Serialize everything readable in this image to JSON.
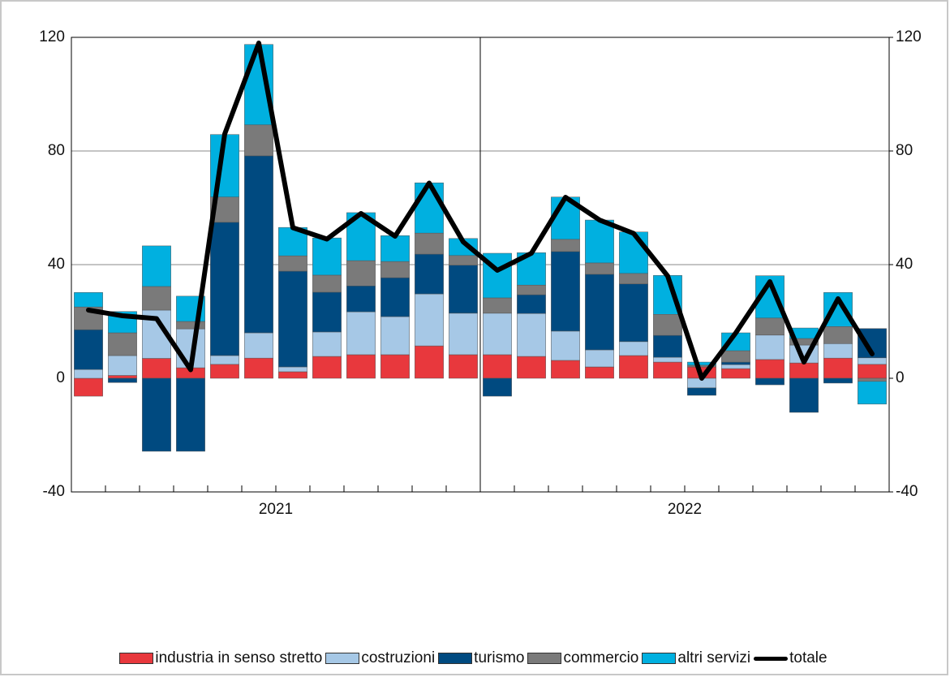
{
  "chart_data": {
    "type": "stacked-bar-line",
    "categories": [
      null,
      null,
      null,
      null,
      null,
      "2021",
      null,
      null,
      null,
      null,
      null,
      null,
      null,
      null,
      null,
      null,
      null,
      "2022",
      null,
      null,
      null,
      null,
      null,
      null
    ],
    "series": [
      {
        "name": "industria in senso stretto",
        "color": "#e8383d",
        "values": [
          -6.3,
          1,
          7,
          3.7,
          4.9,
          7.1,
          2.3,
          7.7,
          8.3,
          8.3,
          11.4,
          8.3,
          8.3,
          7.7,
          6.3,
          4,
          8,
          5.7,
          4,
          3.4,
          6.6,
          5.4,
          7.1,
          4.9
        ]
      },
      {
        "name": "costruzioni",
        "color": "#a6c8e6",
        "values": [
          3.1,
          7,
          17,
          13.7,
          3.1,
          8.9,
          1.7,
          8.6,
          15.1,
          13.4,
          18.3,
          14.6,
          14.6,
          15.1,
          10.3,
          6,
          4.9,
          1.7,
          -3.4,
          1.4,
          8.6,
          6.3,
          5.1,
          2.3
        ]
      },
      {
        "name": "turismo",
        "color": "#004a80",
        "values": [
          14,
          -1.5,
          -25.7,
          -25.7,
          46.9,
          62.3,
          33.7,
          14,
          9.1,
          13.7,
          14,
          16.9,
          -6.3,
          6.6,
          28,
          26.6,
          20.3,
          7.7,
          -2.6,
          0.9,
          -2.3,
          -12,
          -1.7,
          10.3
        ]
      },
      {
        "name": "commercio",
        "color": "#7a7a7a",
        "values": [
          8,
          8,
          8.3,
          2.6,
          8.9,
          10.9,
          5.4,
          6,
          8.9,
          5.7,
          7.4,
          3.4,
          5.4,
          3.4,
          4.3,
          4,
          3.7,
          7.4,
          0.6,
          4,
          6,
          2.3,
          6,
          -1.1
        ]
      },
      {
        "name": "altri servizi",
        "color": "#00b0e0",
        "values": [
          5.1,
          7.5,
          14.3,
          8.9,
          22,
          28.3,
          10,
          13.1,
          16.9,
          9.1,
          17.7,
          6,
          15.7,
          11.4,
          14.9,
          15.1,
          14.6,
          13.7,
          1.1,
          6.3,
          14.9,
          3.7,
          12,
          -8
        ]
      },
      {
        "name": "totale",
        "color": "#000000",
        "line": true,
        "values": [
          24,
          22,
          21,
          3,
          86,
          118,
          53,
          49,
          58,
          50,
          68.7,
          48,
          38,
          44,
          63.7,
          55.7,
          51,
          36,
          0,
          16,
          34,
          5.7,
          28,
          8.6
        ]
      }
    ],
    "ylim": [
      -40,
      120
    ],
    "yticks": [
      -40,
      0,
      40,
      80,
      120
    ],
    "y2lim": [
      -40,
      120
    ],
    "y2ticks": [
      -40,
      0,
      40,
      80,
      120
    ],
    "grid": true
  }
}
